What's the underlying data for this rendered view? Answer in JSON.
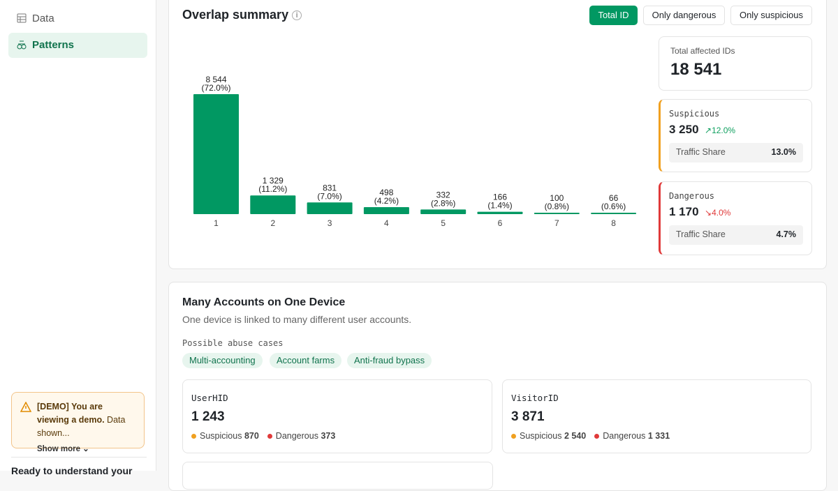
{
  "sidebar": {
    "nav": [
      "Data",
      "Patterns"
    ],
    "demo": {
      "title": "[DEMO] You are viewing a demo.",
      "text": "Data shown...",
      "more": "Show more"
    },
    "footer": "Ready to understand your"
  },
  "overlap": {
    "title": "Overlap summary",
    "tabs": [
      "Total ID",
      "Only dangerous",
      "Only suspicious"
    ],
    "chart": {
      "type": "bar",
      "categories": [
        "1",
        "2",
        "3",
        "4",
        "5",
        "6",
        "7",
        "8"
      ],
      "values": [
        8544,
        1329,
        831,
        498,
        332,
        166,
        100,
        66
      ],
      "value_labels": [
        "8 544",
        "1 329",
        "831",
        "498",
        "332",
        "166",
        "100",
        "66"
      ],
      "percent_labels": [
        "(72.0%)",
        "(11.2%)",
        "(7.0%)",
        "(4.2%)",
        "(2.8%)",
        "(1.4%)",
        "(0.8%)",
        "(0.6%)"
      ],
      "color": "#019862"
    },
    "total": {
      "label": "Total affected IDs",
      "value": "18 541"
    },
    "suspicious": {
      "label": "Suspicious",
      "value": "3 250",
      "change": "12.0%",
      "share_label": "Traffic Share",
      "share": "13.0%"
    },
    "dangerous": {
      "label": "Dangerous",
      "value": "1 170",
      "change": "4.0%",
      "share_label": "Traffic Share",
      "share": "4.7%"
    }
  },
  "pattern": {
    "title": "Many Accounts on One Device",
    "subtitle": "One device is linked to many different user accounts.",
    "cases_label": "Possible abuse cases",
    "tags": [
      "Multi-accounting",
      "Account farms",
      "Anti-fraud bypass"
    ],
    "cards": [
      {
        "label": "UserHID",
        "value": "1 243",
        "suspicious_label": "Suspicious",
        "suspicious": "870",
        "dangerous_label": "Dangerous",
        "dangerous": "373"
      },
      {
        "label": "VisitorID",
        "value": "3 871",
        "suspicious_label": "Suspicious",
        "suspicious": "2 540",
        "dangerous_label": "Dangerous",
        "dangerous": "1 331"
      }
    ]
  }
}
